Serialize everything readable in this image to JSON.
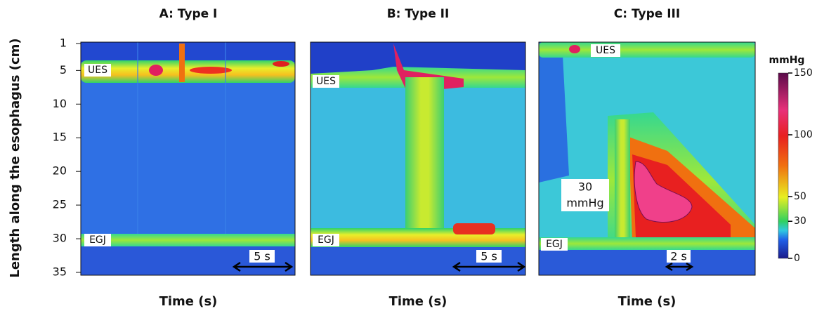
{
  "figure": {
    "y_axis": {
      "label": "Length along the esophagus (cm)",
      "range": [
        1,
        35
      ],
      "ticks": [
        1,
        5,
        10,
        15,
        20,
        25,
        30,
        35
      ]
    },
    "panels": [
      {
        "title": "A: Type I",
        "x_label": "Time (s)",
        "labels": [
          "UES",
          "EGJ"
        ],
        "scale_bar": "5 s"
      },
      {
        "title": "B: Type II",
        "x_label": "Time (s)",
        "labels": [
          "UES",
          "EGJ"
        ],
        "scale_bar": "5 s"
      },
      {
        "title": "C: Type III",
        "x_label": "Time (s)",
        "labels": [
          "UES",
          "EGJ"
        ],
        "scale_bar": "2 s",
        "annotation": [
          "30",
          "mmHg"
        ]
      }
    ],
    "colorbar": {
      "title": "mmHg",
      "range": [
        0,
        150
      ],
      "ticks": [
        0,
        30,
        50,
        100,
        150
      ]
    }
  }
}
